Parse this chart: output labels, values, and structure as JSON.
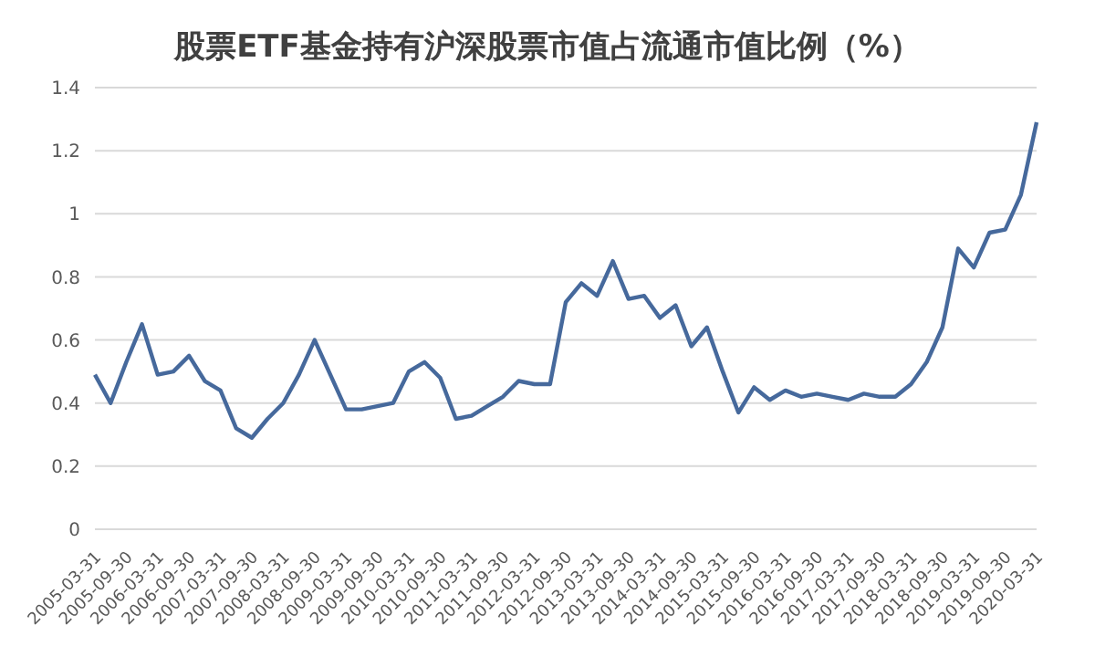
{
  "chart_data": {
    "type": "line",
    "title": "股票ETF基金持有沪深股票市值占流通市值比例（%）",
    "categories": [
      "2005-03-31",
      null,
      "2005-09-30",
      null,
      "2006-03-31",
      null,
      "2006-09-30",
      null,
      "2007-03-31",
      null,
      "2007-09-30",
      null,
      "2008-03-31",
      null,
      "2008-09-30",
      null,
      "2009-03-31",
      null,
      "2009-09-30",
      null,
      "2010-03-31",
      null,
      "2010-09-30",
      null,
      "2011-03-31",
      null,
      "2011-09-30",
      null,
      "2012-03-31",
      null,
      "2012-09-30",
      null,
      "2013-03-31",
      null,
      "2013-09-30",
      null,
      "2014-03-31",
      null,
      "2014-09-30",
      null,
      "2015-03-31",
      null,
      "2015-09-30",
      null,
      "2016-03-31",
      null,
      "2016-09-30",
      null,
      "2017-03-31",
      null,
      "2017-09-30",
      null,
      "2018-03-31",
      null,
      "2018-09-30",
      null,
      "2019-03-31",
      null,
      "2019-09-30",
      null,
      "2020-03-31"
    ],
    "series": [
      {
        "color": "#46699c",
        "values": [
          0.49,
          0.4,
          0.53,
          0.65,
          0.49,
          0.5,
          0.55,
          0.47,
          0.44,
          0.32,
          0.29,
          0.35,
          0.4,
          0.49,
          0.6,
          0.49,
          0.38,
          0.38,
          0.39,
          0.4,
          0.5,
          0.53,
          0.48,
          0.35,
          0.36,
          0.39,
          0.42,
          0.47,
          0.46,
          0.46,
          0.72,
          0.78,
          0.74,
          0.85,
          0.73,
          0.74,
          0.67,
          0.71,
          0.58,
          0.64,
          0.5,
          0.37,
          0.45,
          0.41,
          0.44,
          0.42,
          0.43,
          0.42,
          0.41,
          0.43,
          0.42,
          0.42,
          0.46,
          0.53,
          0.64,
          0.89,
          0.83,
          0.94,
          0.95,
          1.06,
          1.29
        ]
      }
    ],
    "ylim": [
      0,
      1.4
    ],
    "yticks": [
      0,
      0.2,
      0.4,
      0.6,
      0.8,
      1,
      1.2,
      1.4
    ],
    "grid": "y",
    "legend": false,
    "marker": "none",
    "line_style": "solid"
  }
}
